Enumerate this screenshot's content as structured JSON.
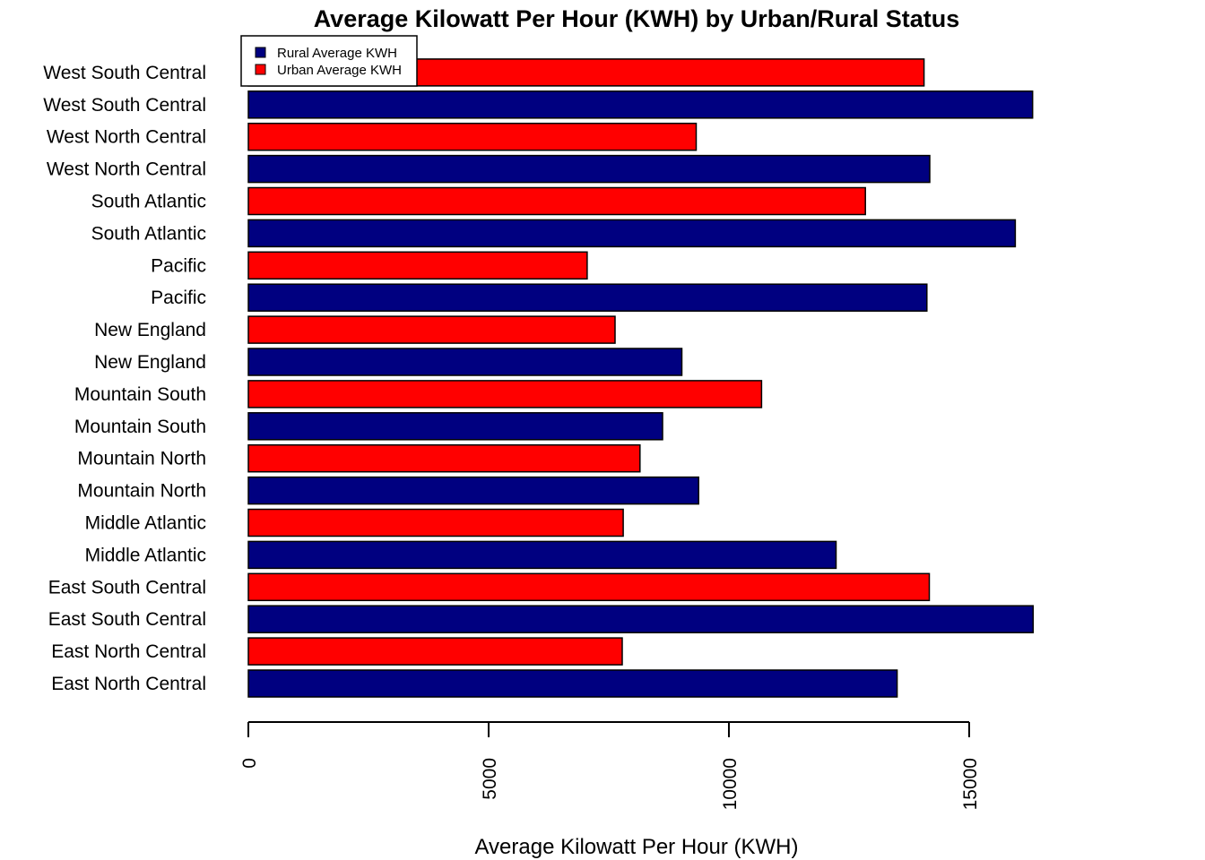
{
  "chart_data": {
    "type": "bar",
    "orientation": "horizontal",
    "title": "Average Kilowatt Per Hour (KWH) by Urban/Rural Status",
    "xlabel": "Average Kilowatt Per Hour (KWH)",
    "ylabel": "",
    "xlim": [
      0,
      17000
    ],
    "xticks": [
      0,
      5000,
      10000,
      15000
    ],
    "xtick_labels": [
      "0",
      "5000",
      "10000",
      "15000"
    ],
    "legend": {
      "placement": "top-left",
      "entries": [
        {
          "label": "Rural Average KWH",
          "color": "#000080"
        },
        {
          "label": "Urban Average KWH",
          "color": "#ff0000"
        }
      ]
    },
    "bars": [
      {
        "label": "East North Central",
        "group": "Rural Average KWH",
        "value": 13500,
        "color": "#000080"
      },
      {
        "label": "East North Central",
        "group": "Urban Average KWH",
        "value": 7780,
        "color": "#ff0000"
      },
      {
        "label": "East South Central",
        "group": "Rural Average KWH",
        "value": 16330,
        "color": "#000080"
      },
      {
        "label": "East South Central",
        "group": "Urban Average KWH",
        "value": 14170,
        "color": "#ff0000"
      },
      {
        "label": "Middle Atlantic",
        "group": "Rural Average KWH",
        "value": 12230,
        "color": "#000080"
      },
      {
        "label": "Middle Atlantic",
        "group": "Urban Average KWH",
        "value": 7800,
        "color": "#ff0000"
      },
      {
        "label": "Mountain North",
        "group": "Rural Average KWH",
        "value": 9370,
        "color": "#000080"
      },
      {
        "label": "Mountain North",
        "group": "Urban Average KWH",
        "value": 8150,
        "color": "#ff0000"
      },
      {
        "label": "Mountain South",
        "group": "Rural Average KWH",
        "value": 8620,
        "color": "#000080"
      },
      {
        "label": "Mountain South",
        "group": "Urban Average KWH",
        "value": 10680,
        "color": "#ff0000"
      },
      {
        "label": "New England",
        "group": "Rural Average KWH",
        "value": 9020,
        "color": "#000080"
      },
      {
        "label": "New England",
        "group": "Urban Average KWH",
        "value": 7630,
        "color": "#ff0000"
      },
      {
        "label": "Pacific",
        "group": "Rural Average KWH",
        "value": 14120,
        "color": "#000080"
      },
      {
        "label": "Pacific",
        "group": "Urban Average KWH",
        "value": 7050,
        "color": "#ff0000"
      },
      {
        "label": "South Atlantic",
        "group": "Rural Average KWH",
        "value": 15960,
        "color": "#000080"
      },
      {
        "label": "South Atlantic",
        "group": "Urban Average KWH",
        "value": 12840,
        "color": "#ff0000"
      },
      {
        "label": "West North Central",
        "group": "Rural Average KWH",
        "value": 14180,
        "color": "#000080"
      },
      {
        "label": "West North Central",
        "group": "Urban Average KWH",
        "value": 9320,
        "color": "#ff0000"
      },
      {
        "label": "West South Central",
        "group": "Rural Average KWH",
        "value": 16320,
        "color": "#000080"
      },
      {
        "label": "West South Central",
        "group": "Urban Average KWH",
        "value": 14060,
        "color": "#ff0000"
      }
    ]
  }
}
